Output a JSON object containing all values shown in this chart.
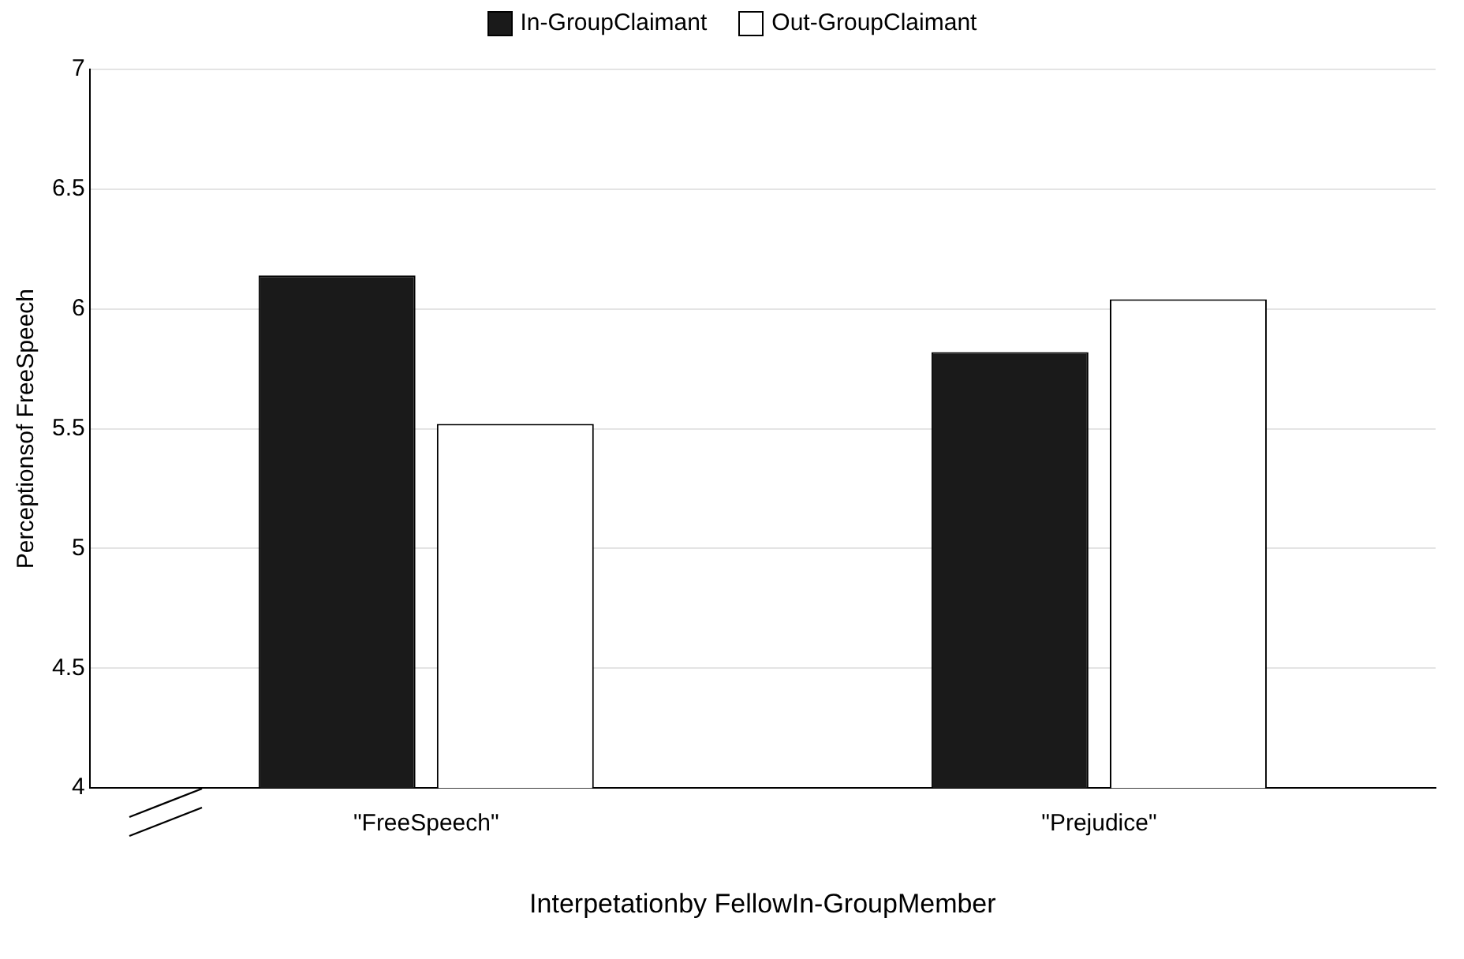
{
  "chart_data": {
    "type": "bar",
    "xlabel": "Interpetationby FellowIn-GroupMember",
    "ylabel": "Perceptionsof FreeSpeech",
    "categories": [
      "\"FreeSpeech\"",
      "\"Prejudice\""
    ],
    "series": [
      {
        "name": "In-GroupClaimant",
        "color": "#1a1a1a",
        "values": [
          6.14,
          5.82
        ]
      },
      {
        "name": "Out-GroupClaimant",
        "color": "#ffffff",
        "values": [
          5.52,
          6.04
        ]
      }
    ],
    "ylim": [
      4,
      7
    ],
    "yticks": [
      4,
      4.5,
      5,
      5.5,
      6,
      6.5,
      7
    ],
    "grid": "y",
    "legend": "top"
  }
}
